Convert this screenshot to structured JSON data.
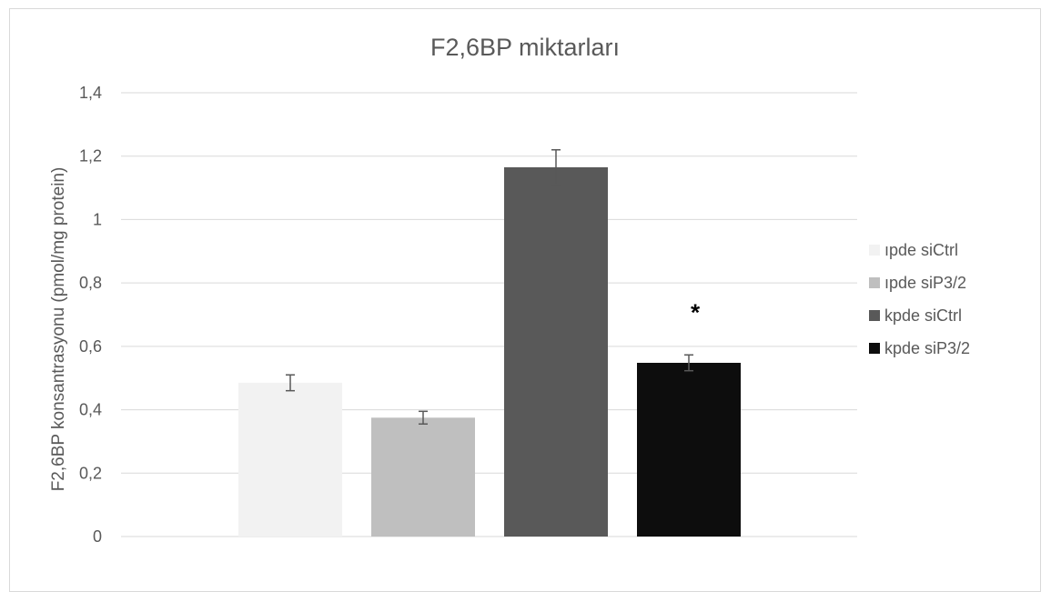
{
  "chart_data": {
    "type": "bar",
    "title": "F2,6BP miktarları",
    "xlabel": "",
    "ylabel": "F2,6BP konsantrasyonu (pmol/mg protein)",
    "ylim": [
      0,
      1.4
    ],
    "yticks": [
      "0",
      "0,2",
      "0,4",
      "0,6",
      "0,8",
      "1",
      "1,2",
      "1,4"
    ],
    "grid": true,
    "legend_position": "right",
    "series": [
      {
        "name": "ıpde siCtrl",
        "value": 0.485,
        "error": 0.025,
        "color": "#f2f2f2"
      },
      {
        "name": "ıpde siP3/2",
        "value": 0.375,
        "error": 0.02,
        "color": "#bfbfbf"
      },
      {
        "name": "kpde siCtrl",
        "value": 1.165,
        "error": 0.055,
        "color": "#595959"
      },
      {
        "name": "kpde siP3/2",
        "value": 0.548,
        "error": 0.025,
        "color": "#0d0d0d"
      }
    ],
    "annotations": [
      {
        "text": "*",
        "series": "kpde siP3/2"
      }
    ]
  }
}
